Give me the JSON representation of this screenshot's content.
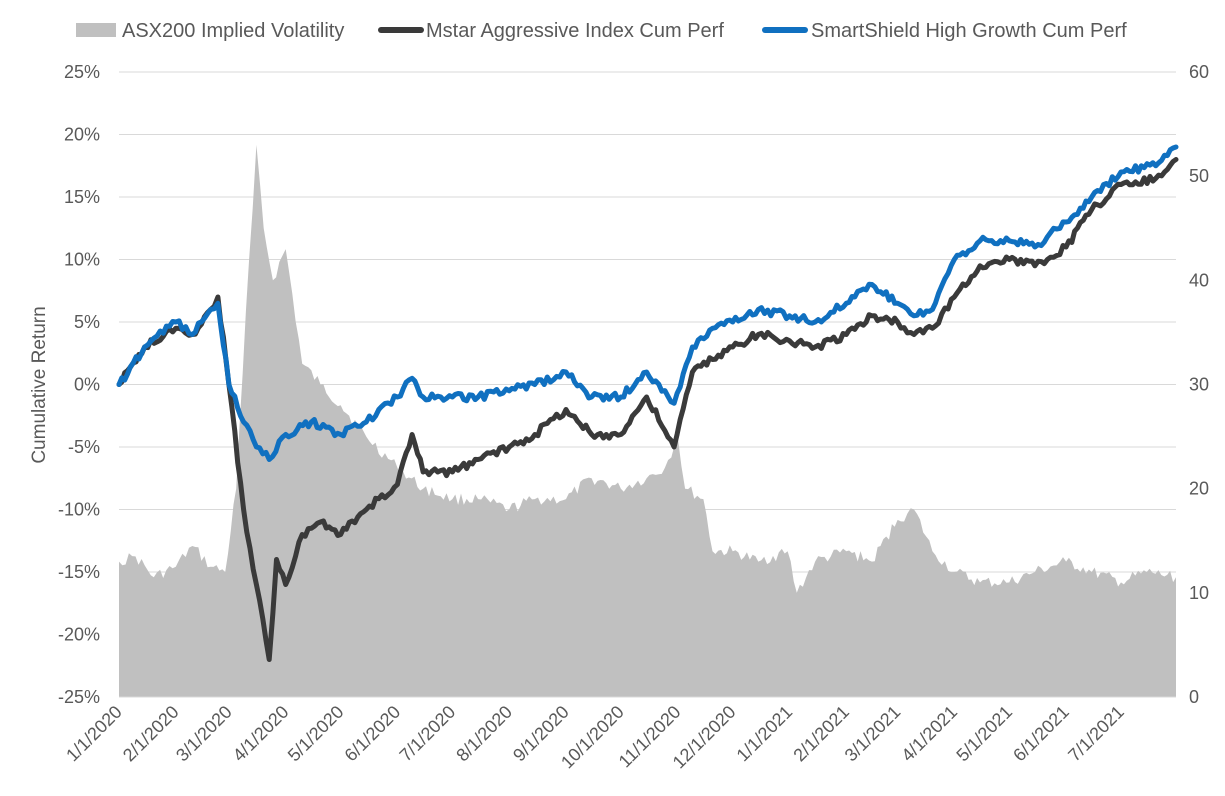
{
  "chart_data": {
    "type": "line",
    "title": "",
    "xlabel": "",
    "ylabel": "Cumulative Return",
    "y2label": "",
    "ylim": [
      -25,
      25
    ],
    "y2lim": [
      0,
      60
    ],
    "yticks": [
      "25%",
      "20%",
      "15%",
      "10%",
      "5%",
      "0%",
      "-5%",
      "-10%",
      "-15%",
      "-20%",
      "-25%"
    ],
    "y2ticks": [
      "60",
      "50",
      "40",
      "30",
      "20",
      "10",
      "0"
    ],
    "x_range": [
      "1/1/2020",
      "7/31/2021"
    ],
    "x_tick_labels": [
      "1/1/2020",
      "2/1/2020",
      "3/1/2020",
      "4/1/2020",
      "5/1/2020",
      "6/1/2020",
      "7/1/2020",
      "8/1/2020",
      "9/1/2020",
      "10/1/2020",
      "11/1/2020",
      "12/1/2020",
      "1/1/2021",
      "2/1/2021",
      "3/1/2021",
      "4/1/2021",
      "5/1/2021",
      "6/1/2021",
      "7/1/2021"
    ],
    "legend_position": "top",
    "gridlines": true,
    "series": [
      {
        "name": "ASX200 Implied Volatility",
        "kind": "area",
        "axis": "right",
        "color": "#c0c0c0",
        "points": [
          [
            "1/1/2020",
            13
          ],
          [
            "1/10/2020",
            13.5
          ],
          [
            "1/20/2020",
            11.5
          ],
          [
            "2/1/2020",
            12.5
          ],
          [
            "2/10/2020",
            14.5
          ],
          [
            "2/20/2020",
            12.5
          ],
          [
            "2/28/2020",
            12
          ],
          [
            "3/5/2020",
            20
          ],
          [
            "3/12/2020",
            42
          ],
          [
            "3/16/2020",
            53
          ],
          [
            "3/20/2020",
            45
          ],
          [
            "3/25/2020",
            40
          ],
          [
            "4/1/2020",
            43
          ],
          [
            "4/10/2020",
            32
          ],
          [
            "4/20/2020",
            30
          ],
          [
            "5/1/2020",
            28
          ],
          [
            "5/15/2020",
            25
          ],
          [
            "6/1/2020",
            22
          ],
          [
            "6/15/2020",
            20
          ],
          [
            "7/1/2020",
            19
          ],
          [
            "7/15/2020",
            19
          ],
          [
            "8/1/2020",
            18
          ],
          [
            "8/15/2020",
            19
          ],
          [
            "9/1/2020",
            19
          ],
          [
            "9/15/2020",
            21
          ],
          [
            "10/1/2020",
            20
          ],
          [
            "10/15/2020",
            21
          ],
          [
            "10/25/2020",
            22
          ],
          [
            "11/1/2020",
            25
          ],
          [
            "11/5/2020",
            20
          ],
          [
            "11/15/2020",
            19
          ],
          [
            "11/20/2020",
            14
          ],
          [
            "12/1/2020",
            14
          ],
          [
            "12/15/2020",
            13
          ],
          [
            "12/31/2020",
            14
          ],
          [
            "1/5/2021",
            10
          ],
          [
            "1/15/2021",
            13
          ],
          [
            "2/1/2021",
            14
          ],
          [
            "2/15/2021",
            13
          ],
          [
            "3/1/2021",
            17
          ],
          [
            "3/10/2021",
            18
          ],
          [
            "3/20/2021",
            14
          ],
          [
            "4/1/2021",
            12
          ],
          [
            "4/15/2021",
            11
          ],
          [
            "5/1/2021",
            11
          ],
          [
            "5/15/2021",
            12
          ],
          [
            "6/1/2021",
            13
          ],
          [
            "6/15/2021",
            12
          ],
          [
            "7/1/2021",
            11
          ],
          [
            "7/15/2021",
            12
          ],
          [
            "7/31/2021",
            11.5
          ]
        ]
      },
      {
        "name": "Mstar Aggressive Index Cum Perf",
        "kind": "line",
        "axis": "left",
        "color": "#3a3a3a",
        "points": [
          [
            "1/1/2020",
            0
          ],
          [
            "1/15/2020",
            3
          ],
          [
            "2/1/2020",
            4.5
          ],
          [
            "2/10/2020",
            4
          ],
          [
            "2/20/2020",
            6
          ],
          [
            "2/24/2020",
            7
          ],
          [
            "3/1/2020",
            0
          ],
          [
            "3/9/2020",
            -10
          ],
          [
            "3/16/2020",
            -16
          ],
          [
            "3/23/2020",
            -22
          ],
          [
            "3/27/2020",
            -14
          ],
          [
            "4/1/2020",
            -16
          ],
          [
            "4/10/2020",
            -12
          ],
          [
            "4/20/2020",
            -11
          ],
          [
            "5/1/2020",
            -12
          ],
          [
            "5/15/2020",
            -10
          ],
          [
            "6/1/2020",
            -8
          ],
          [
            "6/9/2020",
            -4
          ],
          [
            "6/15/2020",
            -7
          ],
          [
            "7/1/2020",
            -7
          ],
          [
            "7/15/2020",
            -6
          ],
          [
            "8/1/2020",
            -5
          ],
          [
            "8/15/2020",
            -4
          ],
          [
            "9/1/2020",
            -2
          ],
          [
            "9/15/2020",
            -4
          ],
          [
            "10/1/2020",
            -4
          ],
          [
            "10/15/2020",
            -1
          ],
          [
            "10/30/2020",
            -5
          ],
          [
            "11/9/2020",
            1
          ],
          [
            "11/20/2020",
            2
          ],
          [
            "12/1/2020",
            3
          ],
          [
            "12/15/2020",
            4
          ],
          [
            "1/1/2021",
            3.5
          ],
          [
            "1/15/2021",
            3
          ],
          [
            "2/1/2021",
            4
          ],
          [
            "2/15/2021",
            5.5
          ],
          [
            "3/1/2021",
            5
          ],
          [
            "3/10/2021",
            4
          ],
          [
            "3/20/2021",
            4.5
          ],
          [
            "4/1/2021",
            7
          ],
          [
            "4/15/2021",
            9.5
          ],
          [
            "5/1/2021",
            10
          ],
          [
            "5/15/2021",
            9.5
          ],
          [
            "6/1/2021",
            11
          ],
          [
            "6/15/2021",
            14
          ],
          [
            "7/1/2021",
            16
          ],
          [
            "7/20/2021",
            16.5
          ],
          [
            "7/31/2021",
            18
          ]
        ]
      },
      {
        "name": "SmartShield High Growth Cum Perf",
        "kind": "line",
        "axis": "left",
        "color": "#1070c0",
        "points": [
          [
            "1/1/2020",
            0
          ],
          [
            "1/15/2020",
            3
          ],
          [
            "2/1/2020",
            5
          ],
          [
            "2/10/2020",
            4
          ],
          [
            "2/20/2020",
            6
          ],
          [
            "2/24/2020",
            6.5
          ],
          [
            "3/1/2020",
            0
          ],
          [
            "3/9/2020",
            -3
          ],
          [
            "3/16/2020",
            -5
          ],
          [
            "3/23/2020",
            -6
          ],
          [
            "4/1/2020",
            -4
          ],
          [
            "4/15/2020",
            -3
          ],
          [
            "5/1/2020",
            -4
          ],
          [
            "5/15/2020",
            -3
          ],
          [
            "6/1/2020",
            -1
          ],
          [
            "6/9/2020",
            0.5
          ],
          [
            "6/15/2020",
            -1
          ],
          [
            "7/1/2020",
            -1
          ],
          [
            "7/15/2020",
            -1
          ],
          [
            "8/1/2020",
            -0.5
          ],
          [
            "8/15/2020",
            0
          ],
          [
            "9/1/2020",
            1
          ],
          [
            "9/15/2020",
            -1
          ],
          [
            "10/1/2020",
            -1
          ],
          [
            "10/15/2020",
            1
          ],
          [
            "10/30/2020",
            -1.5
          ],
          [
            "11/9/2020",
            3
          ],
          [
            "11/20/2020",
            4.5
          ],
          [
            "12/1/2020",
            5
          ],
          [
            "12/15/2020",
            6
          ],
          [
            "1/1/2021",
            5.5
          ],
          [
            "1/15/2021",
            5
          ],
          [
            "2/1/2021",
            6.5
          ],
          [
            "2/15/2021",
            8
          ],
          [
            "3/1/2021",
            6.5
          ],
          [
            "3/10/2021",
            5.5
          ],
          [
            "3/20/2021",
            6
          ],
          [
            "4/1/2021",
            10
          ],
          [
            "4/15/2021",
            11.5
          ],
          [
            "5/1/2021",
            11.5
          ],
          [
            "5/15/2021",
            11
          ],
          [
            "6/1/2021",
            13
          ],
          [
            "6/15/2021",
            15
          ],
          [
            "7/1/2021",
            17
          ],
          [
            "7/20/2021",
            17.5
          ],
          [
            "7/31/2021",
            19
          ]
        ]
      }
    ]
  }
}
